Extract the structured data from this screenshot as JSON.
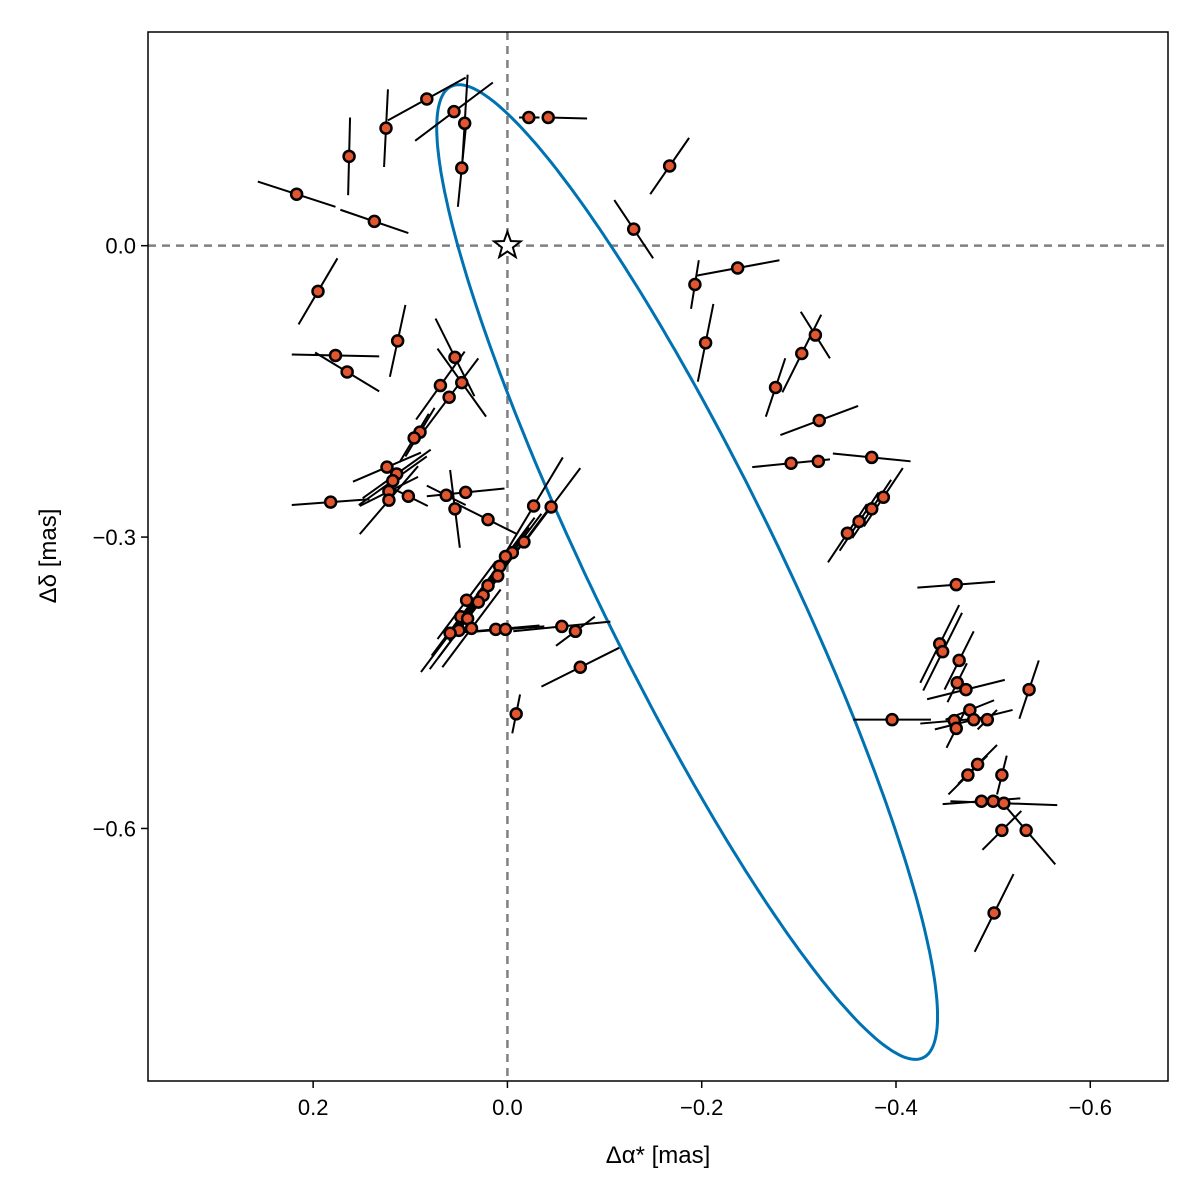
{
  "chart_data": {
    "type": "scatter",
    "title": "",
    "xlabel": "Δα* [mas]",
    "ylabel": "Δδ [mas]",
    "xlim": [
      0.37,
      -0.68
    ],
    "ylim": [
      -0.86,
      0.22
    ],
    "x_reversed": true,
    "xticks": [
      0.2,
      0.0,
      -0.2,
      -0.4,
      -0.6
    ],
    "xtick_labels": [
      "0.2",
      "0.0",
      "−0.2",
      "−0.4",
      "−0.6"
    ],
    "yticks": [
      0.0,
      -0.3,
      -0.6
    ],
    "ytick_labels": [
      "0.0",
      "−0.3",
      "−0.6"
    ],
    "grid": false,
    "reference_lines": {
      "x": 0.0,
      "y": 0.0,
      "style": "dashed",
      "color": "#808080"
    },
    "star": {
      "x": 0.0,
      "y": 0.0,
      "label": "star"
    },
    "orbit": {
      "color": "#0072b2",
      "center": [
        -0.185,
        -0.336
      ],
      "a_vector": [
        -0.243,
        -0.5
      ],
      "b_vector": [
        -0.086,
        0.042
      ]
    },
    "points_style": {
      "fill": "#e1552f",
      "edge": "#000000"
    },
    "points": [
      {
        "x": 0.083,
        "y": 0.151,
        "ex": [
          -0.04,
          0.022
        ],
        "ey": [
          0.04,
          -0.022
        ]
      },
      {
        "x": 0.055,
        "y": 0.138,
        "ex": [
          -0.04,
          0.03
        ],
        "ey": [
          0.04,
          -0.03
        ]
      },
      {
        "x": 0.044,
        "y": 0.126,
        "ex": [
          -0.003,
          0.05
        ],
        "ey": [
          0.003,
          -0.05
        ]
      },
      {
        "x": 0.125,
        "y": 0.121,
        "ex": [
          -0.002,
          0.04
        ],
        "ey": [
          0.002,
          -0.04
        ]
      },
      {
        "x": 0.163,
        "y": 0.092,
        "ex": [
          -0.001,
          0.04
        ],
        "ey": [
          0.001,
          -0.04
        ]
      },
      {
        "x": 0.047,
        "y": 0.08,
        "ex": [
          -0.004,
          0.04
        ],
        "ey": [
          0.004,
          -0.04
        ]
      },
      {
        "x": -0.022,
        "y": 0.132,
        "ex": [
          0.01,
          0.0
        ],
        "ey": [
          -0.011,
          -0.0
        ]
      },
      {
        "x": -0.042,
        "y": 0.132,
        "ex": [
          0.0,
          0.0
        ],
        "ey": [
          -0.04,
          -0.001
        ]
      },
      {
        "x": 0.217,
        "y": 0.053,
        "ex": [
          0.04,
          0.013
        ],
        "ey": [
          -0.04,
          -0.013
        ]
      },
      {
        "x": 0.137,
        "y": 0.025,
        "ex": [
          0.035,
          0.012
        ],
        "ey": [
          -0.035,
          -0.012
        ]
      },
      {
        "x": 0.195,
        "y": -0.047,
        "ex": [
          0.02,
          -0.034
        ],
        "ey": [
          -0.02,
          0.034
        ]
      },
      {
        "x": -0.167,
        "y": 0.082,
        "ex": [
          -0.02,
          0.029
        ],
        "ey": [
          0.02,
          -0.029
        ]
      },
      {
        "x": -0.13,
        "y": 0.017,
        "ex": [
          -0.02,
          -0.03
        ],
        "ey": [
          0.02,
          0.03
        ]
      },
      {
        "x": -0.237,
        "y": -0.023,
        "ex": [
          -0.043,
          0.008
        ],
        "ey": [
          0.043,
          -0.008
        ]
      },
      {
        "x": -0.193,
        "y": -0.04,
        "ex": [
          -0.004,
          0.025
        ],
        "ey": [
          0.004,
          -0.025
        ]
      },
      {
        "x": -0.204,
        "y": -0.1,
        "ex": [
          -0.008,
          0.04
        ],
        "ey": [
          0.008,
          -0.04
        ]
      },
      {
        "x": 0.113,
        "y": -0.098,
        "ex": [
          -0.008,
          0.037
        ],
        "ey": [
          0.008,
          -0.037
        ]
      },
      {
        "x": 0.177,
        "y": -0.113,
        "ex": [
          0.045,
          0.001
        ],
        "ey": [
          -0.045,
          -0.001
        ]
      },
      {
        "x": 0.165,
        "y": -0.13,
        "ex": [
          0.033,
          0.02
        ],
        "ey": [
          -0.033,
          -0.02
        ]
      },
      {
        "x": 0.054,
        "y": -0.115,
        "ex": [
          -0.02,
          -0.04
        ],
        "ey": [
          0.02,
          0.04
        ]
      },
      {
        "x": 0.047,
        "y": -0.141,
        "ex": [
          -0.025,
          -0.035
        ],
        "ey": [
          0.025,
          0.035
        ]
      },
      {
        "x": 0.069,
        "y": -0.144,
        "ex": [
          0.025,
          -0.035
        ],
        "ey": [
          -0.025,
          0.035
        ]
      },
      {
        "x": 0.06,
        "y": -0.156,
        "ex": [
          0.03,
          -0.04
        ],
        "ey": [
          -0.03,
          0.04
        ]
      },
      {
        "x": 0.09,
        "y": -0.192,
        "ex": [
          -0.015,
          0.025
        ],
        "ey": [
          0.015,
          -0.025
        ]
      },
      {
        "x": 0.096,
        "y": -0.198,
        "ex": [
          -0.015,
          0.025
        ],
        "ey": [
          0.015,
          -0.025
        ]
      },
      {
        "x": -0.317,
        "y": -0.092,
        "ex": [
          0.015,
          0.024
        ],
        "ey": [
          -0.015,
          -0.024
        ]
      },
      {
        "x": -0.303,
        "y": -0.111,
        "ex": [
          -0.02,
          0.04
        ],
        "ey": [
          0.02,
          -0.04
        ]
      },
      {
        "x": -0.276,
        "y": -0.146,
        "ex": [
          -0.01,
          0.03
        ],
        "ey": [
          0.01,
          -0.03
        ]
      },
      {
        "x": -0.321,
        "y": -0.18,
        "ex": [
          -0.04,
          0.015
        ],
        "ey": [
          0.04,
          -0.015
        ]
      },
      {
        "x": -0.292,
        "y": -0.224,
        "ex": [
          -0.04,
          0.004
        ],
        "ey": [
          0.04,
          -0.004
        ]
      },
      {
        "x": -0.32,
        "y": -0.222,
        "ex": [
          -0.004,
          0.0
        ],
        "ey": [
          0.004,
          -0.0
        ]
      },
      {
        "x": -0.375,
        "y": -0.218,
        "ex": [
          0.04,
          0.004
        ],
        "ey": [
          -0.04,
          -0.004
        ]
      },
      {
        "x": -0.387,
        "y": -0.259,
        "ex": [
          -0.02,
          0.03
        ],
        "ey": [
          0.02,
          -0.03
        ]
      },
      {
        "x": -0.375,
        "y": -0.271,
        "ex": [
          -0.02,
          0.03
        ],
        "ey": [
          0.02,
          -0.03
        ]
      },
      {
        "x": -0.362,
        "y": -0.284,
        "ex": [
          -0.02,
          0.03
        ],
        "ey": [
          0.02,
          -0.03
        ]
      },
      {
        "x": -0.35,
        "y": -0.296,
        "ex": [
          -0.02,
          0.03
        ],
        "ey": [
          0.02,
          -0.03
        ]
      },
      {
        "x": 0.124,
        "y": -0.228,
        "ex": [
          0.035,
          -0.015
        ],
        "ey": [
          -0.035,
          0.015
        ]
      },
      {
        "x": 0.114,
        "y": -0.235,
        "ex": [
          0.035,
          -0.025
        ],
        "ey": [
          -0.035,
          0.025
        ]
      },
      {
        "x": 0.118,
        "y": -0.242,
        "ex": [
          0.035,
          -0.025
        ],
        "ey": [
          -0.035,
          0.025
        ]
      },
      {
        "x": 0.122,
        "y": -0.253,
        "ex": [
          0.03,
          -0.015
        ],
        "ey": [
          -0.03,
          0.015
        ]
      },
      {
        "x": 0.122,
        "y": -0.262,
        "ex": [
          0.03,
          -0.035
        ],
        "ey": [
          -0.03,
          0.035
        ]
      },
      {
        "x": 0.182,
        "y": -0.264,
        "ex": [
          0.04,
          -0.003
        ],
        "ey": [
          -0.04,
          0.003
        ]
      },
      {
        "x": 0.102,
        "y": -0.258,
        "ex": [
          0.02,
          0.01
        ],
        "ey": [
          -0.02,
          -0.01
        ]
      },
      {
        "x": 0.063,
        "y": -0.257,
        "ex": [
          0.02,
          0.01
        ],
        "ey": [
          -0.02,
          -0.01
        ]
      },
      {
        "x": 0.054,
        "y": -0.271,
        "ex": [
          -0.005,
          -0.04
        ],
        "ey": [
          0.005,
          0.04
        ]
      },
      {
        "x": 0.043,
        "y": -0.254,
        "ex": [
          0.04,
          -0.004
        ],
        "ey": [
          -0.04,
          0.004
        ]
      },
      {
        "x": 0.02,
        "y": -0.282,
        "ex": [
          0.03,
          0.015
        ],
        "ey": [
          -0.03,
          -0.015
        ]
      },
      {
        "x": -0.027,
        "y": -0.268,
        "ex": [
          0.03,
          -0.05
        ],
        "ey": [
          -0.03,
          0.05
        ]
      },
      {
        "x": -0.045,
        "y": -0.269,
        "ex": [
          0.03,
          -0.04
        ],
        "ey": [
          -0.03,
          0.04
        ]
      },
      {
        "x": -0.017,
        "y": -0.305,
        "ex": [
          0.03,
          -0.04
        ],
        "ey": [
          -0.03,
          0.04
        ]
      },
      {
        "x": -0.005,
        "y": -0.316,
        "ex": [
          0.03,
          -0.04
        ],
        "ey": [
          -0.03,
          0.04
        ]
      },
      {
        "x": 0.002,
        "y": -0.32,
        "ex": [
          0.03,
          -0.04
        ],
        "ey": [
          -0.03,
          0.04
        ]
      },
      {
        "x": 0.008,
        "y": -0.33,
        "ex": [
          0.03,
          -0.04
        ],
        "ey": [
          -0.03,
          0.04
        ]
      },
      {
        "x": 0.01,
        "y": -0.34,
        "ex": [
          0.03,
          -0.04
        ],
        "ey": [
          -0.03,
          0.04
        ]
      },
      {
        "x": 0.02,
        "y": -0.35,
        "ex": [
          0.03,
          -0.04
        ],
        "ey": [
          -0.03,
          0.04
        ]
      },
      {
        "x": 0.025,
        "y": -0.36,
        "ex": [
          0.03,
          -0.04
        ],
        "ey": [
          -0.03,
          0.04
        ]
      },
      {
        "x": 0.042,
        "y": -0.365,
        "ex": [
          0.03,
          -0.04
        ],
        "ey": [
          -0.03,
          0.04
        ]
      },
      {
        "x": 0.03,
        "y": -0.367,
        "ex": [
          0.03,
          -0.04
        ],
        "ey": [
          -0.03,
          0.04
        ]
      },
      {
        "x": 0.048,
        "y": -0.382,
        "ex": [
          0.03,
          -0.04
        ],
        "ey": [
          -0.03,
          0.04
        ]
      },
      {
        "x": 0.041,
        "y": -0.384,
        "ex": [
          0.03,
          -0.04
        ],
        "ey": [
          -0.03,
          0.04
        ]
      },
      {
        "x": 0.037,
        "y": -0.394,
        "ex": [
          0.03,
          -0.04
        ],
        "ey": [
          -0.03,
          0.04
        ]
      },
      {
        "x": 0.05,
        "y": -0.396,
        "ex": [
          0.03,
          -0.04
        ],
        "ey": [
          -0.03,
          0.04
        ]
      },
      {
        "x": 0.059,
        "y": -0.399,
        "ex": [
          0.03,
          -0.04
        ],
        "ey": [
          -0.03,
          0.04
        ]
      },
      {
        "x": 0.012,
        "y": -0.395,
        "ex": [
          0.045,
          -0.004
        ],
        "ey": [
          -0.045,
          0.004
        ]
      },
      {
        "x": 0.002,
        "y": -0.395,
        "ex": [
          0.04,
          -0.003
        ],
        "ey": [
          -0.04,
          0.003
        ]
      },
      {
        "x": -0.056,
        "y": -0.392,
        "ex": [
          0.05,
          -0.005
        ],
        "ey": [
          -0.05,
          0.005
        ]
      },
      {
        "x": -0.07,
        "y": -0.397,
        "ex": [
          0.02,
          -0.015
        ],
        "ey": [
          -0.02,
          0.015
        ]
      },
      {
        "x": -0.075,
        "y": -0.434,
        "ex": [
          0.04,
          -0.02
        ],
        "ey": [
          -0.04,
          0.02
        ]
      },
      {
        "x": -0.009,
        "y": -0.482,
        "ex": [
          -0.004,
          0.02
        ],
        "ey": [
          0.004,
          -0.02
        ]
      },
      {
        "x": -0.462,
        "y": -0.349,
        "ex": [
          0.04,
          -0.003
        ],
        "ey": [
          -0.04,
          0.003
        ]
      },
      {
        "x": -0.445,
        "y": -0.41,
        "ex": [
          -0.02,
          0.04
        ],
        "ey": [
          0.02,
          -0.04
        ]
      },
      {
        "x": -0.448,
        "y": -0.418,
        "ex": [
          -0.02,
          0.04
        ],
        "ey": [
          0.02,
          -0.04
        ]
      },
      {
        "x": -0.465,
        "y": -0.427,
        "ex": [
          -0.015,
          0.03
        ],
        "ey": [
          0.015,
          -0.03
        ]
      },
      {
        "x": -0.463,
        "y": -0.45,
        "ex": [
          -0.01,
          0.02
        ],
        "ey": [
          0.01,
          -0.02
        ]
      },
      {
        "x": -0.472,
        "y": -0.457,
        "ex": [
          -0.04,
          0.01
        ],
        "ey": [
          0.04,
          -0.01
        ]
      },
      {
        "x": -0.537,
        "y": -0.457,
        "ex": [
          -0.01,
          0.03
        ],
        "ey": [
          0.01,
          -0.03
        ]
      },
      {
        "x": -0.396,
        "y": -0.488,
        "ex": [
          0.04,
          0.0
        ],
        "ey": [
          -0.04,
          -0.0
        ]
      },
      {
        "x": -0.46,
        "y": -0.489,
        "ex": [
          -0.035,
          0.003
        ],
        "ey": [
          0.035,
          -0.003
        ]
      },
      {
        "x": -0.476,
        "y": -0.478,
        "ex": [
          -0.025,
          0.01
        ],
        "ey": [
          0.025,
          -0.01
        ]
      },
      {
        "x": -0.48,
        "y": -0.488,
        "ex": [
          -0.04,
          0.01
        ],
        "ey": [
          0.04,
          -0.01
        ]
      },
      {
        "x": -0.494,
        "y": -0.488,
        "ex": [
          -0.01,
          0.01
        ],
        "ey": [
          0.01,
          -0.01
        ]
      },
      {
        "x": -0.462,
        "y": -0.497,
        "ex": [
          -0.01,
          0.02
        ],
        "ey": [
          0.01,
          -0.02
        ]
      },
      {
        "x": -0.484,
        "y": -0.534,
        "ex": [
          -0.02,
          0.02
        ],
        "ey": [
          0.02,
          -0.02
        ]
      },
      {
        "x": -0.474,
        "y": -0.545,
        "ex": [
          -0.02,
          0.02
        ],
        "ey": [
          0.02,
          -0.02
        ]
      },
      {
        "x": -0.509,
        "y": -0.545,
        "ex": [
          -0.005,
          0.02
        ],
        "ey": [
          0.005,
          -0.02
        ]
      },
      {
        "x": -0.488,
        "y": -0.572,
        "ex": [
          0.04,
          -0.003
        ],
        "ey": [
          -0.04,
          0.003
        ]
      },
      {
        "x": -0.5,
        "y": -0.572,
        "ex": [
          -0.01,
          0.003
        ],
        "ey": [
          0.01,
          -0.003
        ]
      },
      {
        "x": -0.511,
        "y": -0.574,
        "ex": [
          -0.055,
          -0.002
        ],
        "ey": [
          0.055,
          0.002
        ]
      },
      {
        "x": -0.534,
        "y": -0.602,
        "ex": [
          -0.03,
          -0.035
        ],
        "ey": [
          0.03,
          0.035
        ]
      },
      {
        "x": -0.509,
        "y": -0.602,
        "ex": [
          -0.02,
          0.02
        ],
        "ey": [
          0.02,
          -0.02
        ]
      },
      {
        "x": -0.501,
        "y": -0.687,
        "ex": [
          -0.02,
          0.04
        ],
        "ey": [
          0.02,
          -0.04
        ]
      }
    ]
  }
}
